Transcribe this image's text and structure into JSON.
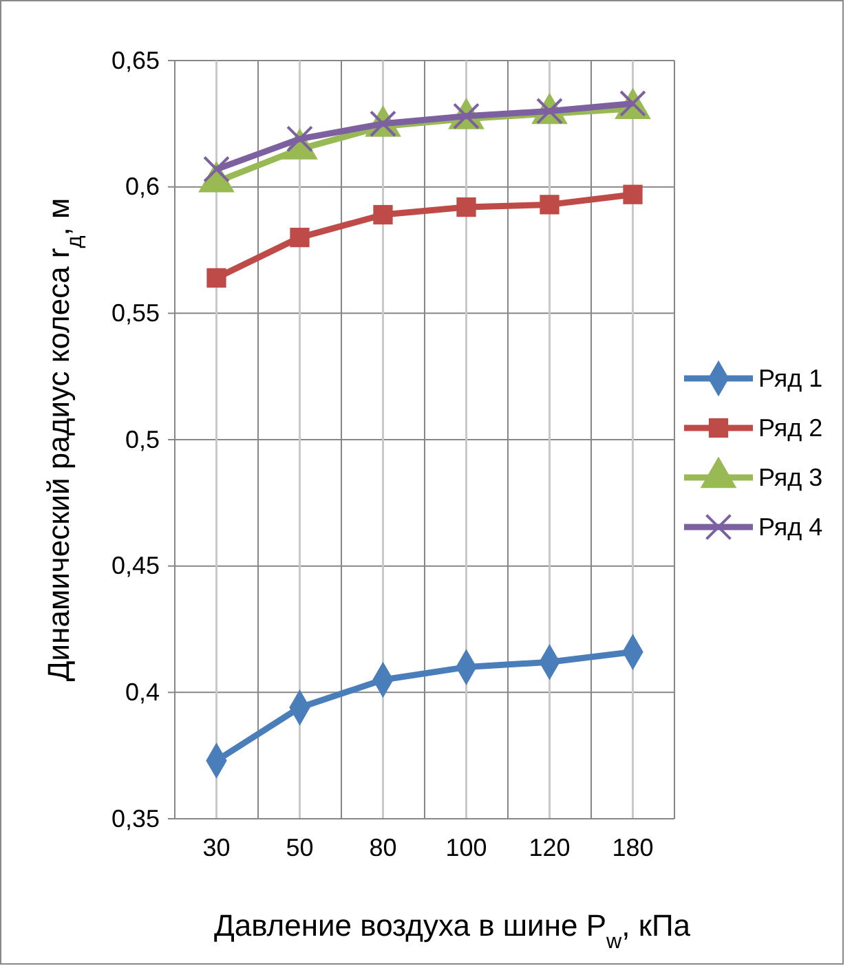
{
  "chart_data": {
    "type": "line",
    "xlabel": "Давление воздуха в шине P$_{w}$, кПа",
    "ylabel": "Динамический радиус колеса r$_{д}$, м",
    "categories": [
      "30",
      "50",
      "80",
      "100",
      "120",
      "180"
    ],
    "ylim": [
      0.35,
      0.65
    ],
    "yticks": [
      {
        "value": 0.35,
        "label": "0,35"
      },
      {
        "value": 0.4,
        "label": "0,4"
      },
      {
        "value": 0.45,
        "label": "0,45"
      },
      {
        "value": 0.5,
        "label": "0,5"
      },
      {
        "value": 0.55,
        "label": "0,55"
      },
      {
        "value": 0.6,
        "label": "0,6"
      },
      {
        "value": 0.65,
        "label": "0,65"
      }
    ],
    "grid": true,
    "legend": "right",
    "series": [
      {
        "name": "Ряд 1",
        "color": "#4a7ebb",
        "marker": "diamond",
        "values": [
          0.373,
          0.394,
          0.405,
          0.41,
          0.412,
          0.416
        ]
      },
      {
        "name": "Ряд 2",
        "color": "#be4b48",
        "marker": "square",
        "values": [
          0.564,
          0.58,
          0.589,
          0.592,
          0.593,
          0.597
        ]
      },
      {
        "name": "Ряд 3",
        "color": "#98b954",
        "marker": "triangle",
        "values": [
          0.602,
          0.615,
          0.624,
          0.627,
          0.629,
          0.631
        ]
      },
      {
        "name": "Ряд 4",
        "color": "#7d60a0",
        "marker": "cross",
        "values": [
          0.607,
          0.619,
          0.625,
          0.628,
          0.63,
          0.633
        ]
      }
    ]
  }
}
